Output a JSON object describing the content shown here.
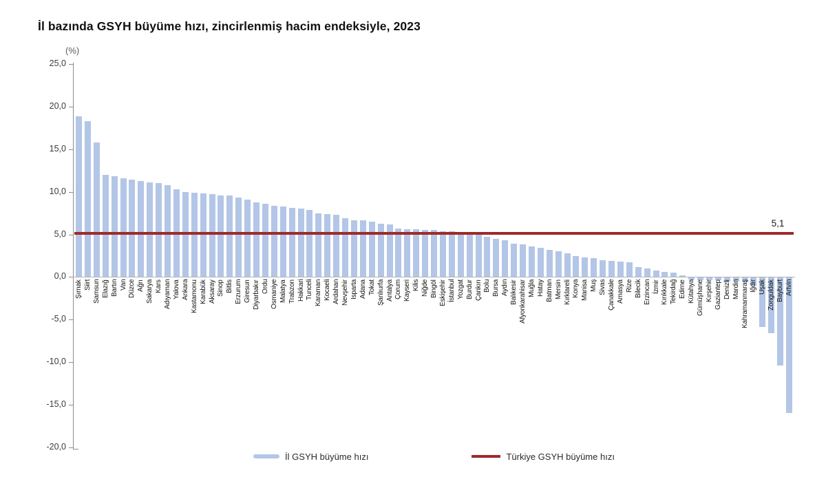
{
  "chart_data": {
    "type": "bar",
    "title": "İl bazında GSYH büyüme hızı, zincirlenmiş hacim endeksiyle, 2023",
    "unit_label": "(%)",
    "xlabel": "",
    "ylabel": "",
    "ylim": [
      -20,
      25
    ],
    "y_tick_step": 5,
    "y_ticks": [
      "25,0",
      "20,0",
      "15,0",
      "10,0",
      "5,0",
      "0,0",
      "-5,0",
      "-10,0",
      "-15,0",
      "-20,0"
    ],
    "grid": false,
    "legend_position": "bottom",
    "bar_color": "#b3c6e7",
    "categories": [
      "Şırnak",
      "Siirt",
      "Samsun",
      "Elazığ",
      "Bartın",
      "Van",
      "Düzce",
      "Ağrı",
      "Sakarya",
      "Kars",
      "Adıyaman",
      "Yalova",
      "Ankara",
      "Kastamonu",
      "Karabük",
      "Aksaray",
      "Sinop",
      "Bitlis",
      "Erzurum",
      "Giresun",
      "Diyarbakır",
      "Ordu",
      "Osmaniye",
      "Malatya",
      "Trabzon",
      "Hakkari",
      "Tunceli",
      "Karaman",
      "Kocaeli",
      "Ardahan",
      "Nevşehir",
      "Isparta",
      "Adana",
      "Tokat",
      "Şanlıurfa",
      "Antalya",
      "Çorum",
      "Kayseri",
      "Kilis",
      "Niğde",
      "Bingöl",
      "Eskişehir",
      "İstanbul",
      "Yozgat",
      "Burdur",
      "Çankırı",
      "Bolu",
      "Bursa",
      "Aydın",
      "Balıkesir",
      "Afyonkarahisar",
      "Muğla",
      "Hatay",
      "Batman",
      "Mersin",
      "Kırklareli",
      "Konya",
      "Manisa",
      "Muş",
      "Sivas",
      "Çanakkale",
      "Amasya",
      "Rize",
      "Bilecik",
      "Erzincan",
      "İzmir",
      "Kırıkkale",
      "Tekirdağ",
      "Edirne",
      "Kütahya",
      "Gümüşhane",
      "Kırşehir",
      "Gaziantep",
      "Denizli",
      "Mardin",
      "Kahramanmaraş",
      "Iğdır",
      "Uşak",
      "Zonguldak",
      "Bayburt",
      "Artvin"
    ],
    "values": [
      18.9,
      18.3,
      15.8,
      12.0,
      11.8,
      11.6,
      11.4,
      11.3,
      11.1,
      11.0,
      10.8,
      10.3,
      10.0,
      9.9,
      9.8,
      9.7,
      9.6,
      9.6,
      9.3,
      9.1,
      8.8,
      8.6,
      8.4,
      8.3,
      8.1,
      8.0,
      7.9,
      7.5,
      7.4,
      7.3,
      6.9,
      6.7,
      6.7,
      6.5,
      6.3,
      6.2,
      5.7,
      5.6,
      5.6,
      5.5,
      5.5,
      5.4,
      5.4,
      5.2,
      5.1,
      5.0,
      4.7,
      4.5,
      4.3,
      3.9,
      3.8,
      3.6,
      3.4,
      3.2,
      3.0,
      2.8,
      2.5,
      2.3,
      2.2,
      2.0,
      1.9,
      1.8,
      1.7,
      1.2,
      1.0,
      0.8,
      0.6,
      0.5,
      0.2,
      -0.3,
      -0.4,
      -0.4,
      -0.4,
      -0.5,
      -0.5,
      -0.6,
      -1.0,
      -5.9,
      -6.6,
      -10.4,
      -16.0
    ],
    "reference_line": {
      "value": 5.1,
      "value_label": "5,1",
      "color": "#9e2a2a"
    },
    "legend": [
      {
        "label": "İl GSYH büyüme hızı",
        "swatch": "bar",
        "color": "#b3c6e7"
      },
      {
        "label": "Türkiye GSYH büyüme hızı",
        "swatch": "line",
        "color": "#9e2a2a"
      }
    ]
  }
}
